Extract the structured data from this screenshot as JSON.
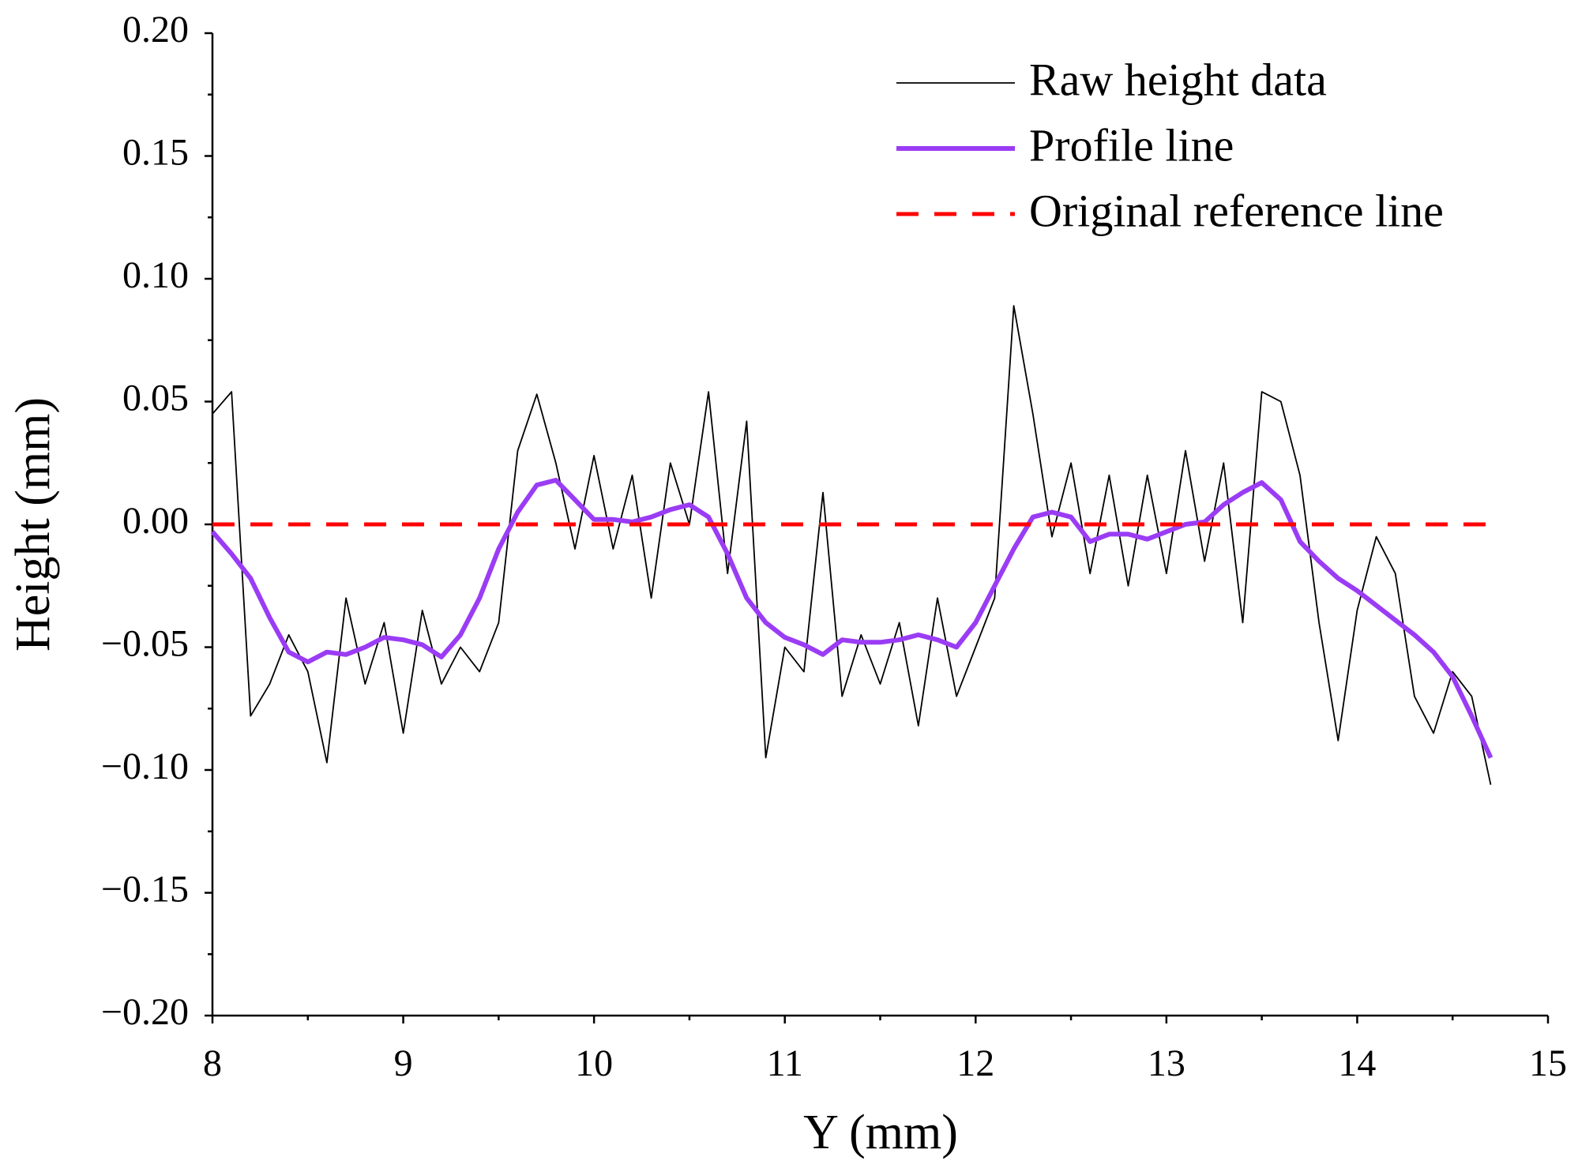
{
  "chart_data": {
    "type": "line",
    "xlabel": "Y (mm)",
    "ylabel": "Height (mm)",
    "x": [
      8.0,
      8.1,
      8.2,
      8.3,
      8.4,
      8.5,
      8.6,
      8.7,
      8.8,
      8.9,
      9.0,
      9.1,
      9.2,
      9.3,
      9.4,
      9.5,
      9.6,
      9.7,
      9.8,
      9.9,
      10.0,
      10.1,
      10.2,
      10.3,
      10.4,
      10.5,
      10.6,
      10.7,
      10.8,
      10.9,
      11.0,
      11.1,
      11.2,
      11.3,
      11.4,
      11.5,
      11.6,
      11.7,
      11.8,
      11.9,
      12.0,
      12.1,
      12.2,
      12.3,
      12.4,
      12.5,
      12.6,
      12.7,
      12.8,
      12.9,
      13.0,
      13.1,
      13.2,
      13.3,
      13.4,
      13.5,
      13.6,
      13.7,
      13.8,
      13.9,
      14.0,
      14.1,
      14.2,
      14.3,
      14.4,
      14.5,
      14.6,
      14.7
    ],
    "series": [
      {
        "name": "Raw height data",
        "color": "#000000",
        "dashed": false,
        "values": [
          0.045,
          0.054,
          -0.078,
          -0.065,
          -0.045,
          -0.06,
          -0.097,
          -0.03,
          -0.065,
          -0.04,
          -0.085,
          -0.035,
          -0.065,
          -0.05,
          -0.06,
          -0.04,
          0.03,
          0.053,
          0.025,
          -0.01,
          0.028,
          -0.01,
          0.02,
          -0.03,
          0.025,
          0.0,
          0.054,
          -0.02,
          0.042,
          -0.095,
          -0.05,
          -0.06,
          0.013,
          -0.07,
          -0.045,
          -0.065,
          -0.04,
          -0.082,
          -0.03,
          -0.07,
          -0.05,
          -0.03,
          0.089,
          0.045,
          -0.005,
          0.025,
          -0.02,
          0.02,
          -0.025,
          0.02,
          -0.02,
          0.03,
          -0.015,
          0.025,
          -0.04,
          0.054,
          0.05,
          0.02,
          -0.04,
          -0.088,
          -0.035,
          -0.005,
          -0.02,
          -0.07,
          -0.085,
          -0.06,
          -0.07,
          -0.106
        ]
      },
      {
        "name": "Profile line",
        "color": "#9b3cf5",
        "dashed": false,
        "values": [
          -0.003,
          -0.012,
          -0.022,
          -0.038,
          -0.052,
          -0.056,
          -0.052,
          -0.053,
          -0.05,
          -0.046,
          -0.047,
          -0.049,
          -0.054,
          -0.045,
          -0.03,
          -0.01,
          0.005,
          0.016,
          0.018,
          0.01,
          0.002,
          0.002,
          0.001,
          0.003,
          0.006,
          0.008,
          0.003,
          -0.012,
          -0.03,
          -0.04,
          -0.046,
          -0.049,
          -0.053,
          -0.047,
          -0.048,
          -0.048,
          -0.047,
          -0.045,
          -0.047,
          -0.05,
          -0.04,
          -0.025,
          -0.01,
          0.003,
          0.005,
          0.003,
          -0.007,
          -0.004,
          -0.004,
          -0.006,
          -0.003,
          0.0,
          0.001,
          0.008,
          0.013,
          0.017,
          0.01,
          -0.007,
          -0.015,
          -0.022,
          -0.027,
          -0.033,
          -0.039,
          -0.045,
          -0.052,
          -0.062,
          -0.078,
          -0.095
        ]
      },
      {
        "name": "Original reference line",
        "color": "#ff0000",
        "dashed": true,
        "values": [
          0,
          0,
          0,
          0,
          0,
          0,
          0,
          0,
          0,
          0,
          0,
          0,
          0,
          0,
          0,
          0,
          0,
          0,
          0,
          0,
          0,
          0,
          0,
          0,
          0,
          0,
          0,
          0,
          0,
          0,
          0,
          0,
          0,
          0,
          0,
          0,
          0,
          0,
          0,
          0,
          0,
          0,
          0,
          0,
          0,
          0,
          0,
          0,
          0,
          0,
          0,
          0,
          0,
          0,
          0,
          0,
          0,
          0,
          0,
          0,
          0,
          0,
          0,
          0,
          0,
          0,
          0,
          0
        ]
      }
    ],
    "xlim": [
      8,
      15
    ],
    "xticks": [
      8,
      9,
      10,
      11,
      12,
      13,
      14,
      15
    ],
    "ylim": [
      -0.2,
      0.2
    ],
    "yticks": [
      {
        "value": -0.2,
        "label": "−0.20"
      },
      {
        "value": -0.15,
        "label": "−0.15"
      },
      {
        "value": -0.1,
        "label": "−0.10"
      },
      {
        "value": -0.05,
        "label": "−0.05"
      },
      {
        "value": 0,
        "label": "0.00"
      },
      {
        "value": 0.05,
        "label": "0.05"
      },
      {
        "value": 0.1,
        "label": "0.10"
      },
      {
        "value": 0.15,
        "label": "0.15"
      },
      {
        "value": 0.2,
        "label": "0.20"
      }
    ],
    "grid": false,
    "legend": "upper right"
  }
}
